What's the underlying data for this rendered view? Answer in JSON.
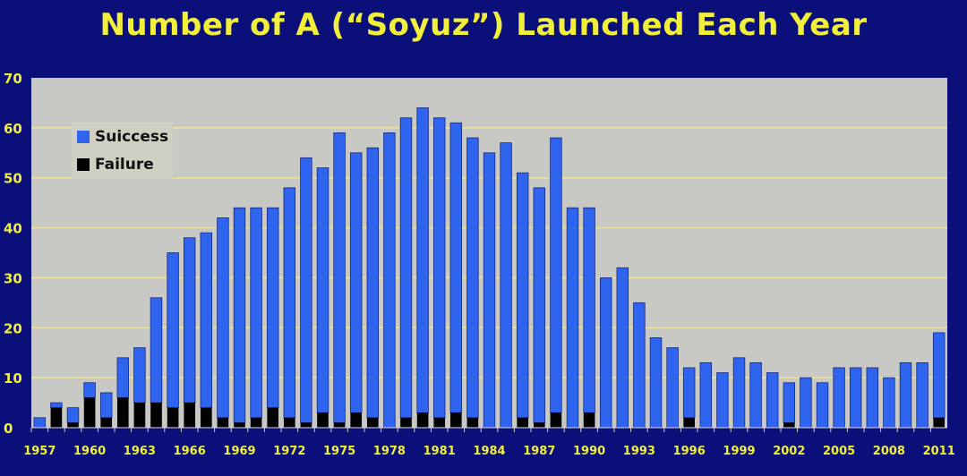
{
  "chart_data": {
    "type": "bar",
    "stacked": true,
    "title": "Number of A (“Soyuz”) Launched Each Year",
    "xlabel": "",
    "ylabel": "",
    "ylim": [
      0,
      70
    ],
    "yticks": [
      0,
      10,
      20,
      30,
      40,
      50,
      60,
      70
    ],
    "grid": true,
    "legend_position": "top-left",
    "categories": [
      1957,
      1958,
      1959,
      1960,
      1961,
      1962,
      1963,
      1964,
      1965,
      1966,
      1967,
      1968,
      1969,
      1970,
      1971,
      1972,
      1973,
      1974,
      1975,
      1976,
      1977,
      1978,
      1979,
      1980,
      1981,
      1982,
      1983,
      1984,
      1985,
      1986,
      1987,
      1988,
      1989,
      1990,
      1991,
      1992,
      1993,
      1994,
      1995,
      1996,
      1997,
      1998,
      1999,
      2000,
      2001,
      2002,
      2003,
      2004,
      2005,
      2006,
      2007,
      2008,
      2009,
      2010,
      2011
    ],
    "xtick_labels": [
      "1957",
      "1960",
      "1963",
      "1966",
      "1969",
      "1972",
      "1975",
      "1978",
      "1981",
      "1984",
      "1987",
      "1990",
      "1993",
      "1996",
      "1999",
      "2002",
      "2005",
      "2008",
      "2011"
    ],
    "series": [
      {
        "name": "Failure",
        "color": "#000000",
        "values": [
          0,
          4,
          1,
          6,
          2,
          6,
          5,
          5,
          4,
          5,
          4,
          2,
          1,
          2,
          4,
          2,
          1,
          3,
          1,
          3,
          2,
          0,
          2,
          3,
          2,
          3,
          2,
          0,
          0,
          2,
          1,
          3,
          0,
          3,
          0,
          0,
          0,
          0,
          0,
          2,
          0,
          0,
          0,
          0,
          0,
          1,
          0,
          0,
          0,
          0,
          0,
          0,
          0,
          0,
          2
        ]
      },
      {
        "name": "Suiccess",
        "color": "#2f64ee",
        "values": [
          2,
          1,
          3,
          3,
          5,
          8,
          11,
          21,
          31,
          33,
          35,
          40,
          43,
          42,
          40,
          46,
          53,
          49,
          58,
          52,
          54,
          59,
          60,
          61,
          60,
          58,
          56,
          55,
          57,
          49,
          47,
          55,
          44,
          41,
          30,
          32,
          25,
          18,
          16,
          10,
          13,
          11,
          14,
          13,
          11,
          8,
          10,
          9,
          12,
          12,
          12,
          10,
          13,
          13,
          17
        ]
      }
    ]
  },
  "colors": {
    "background": "#0a0f7a",
    "plot_area": "#c8c8c4",
    "gridline": "#e6e3a0",
    "title": "#f2ef3a",
    "tick_labels": "#f2ef3a"
  }
}
